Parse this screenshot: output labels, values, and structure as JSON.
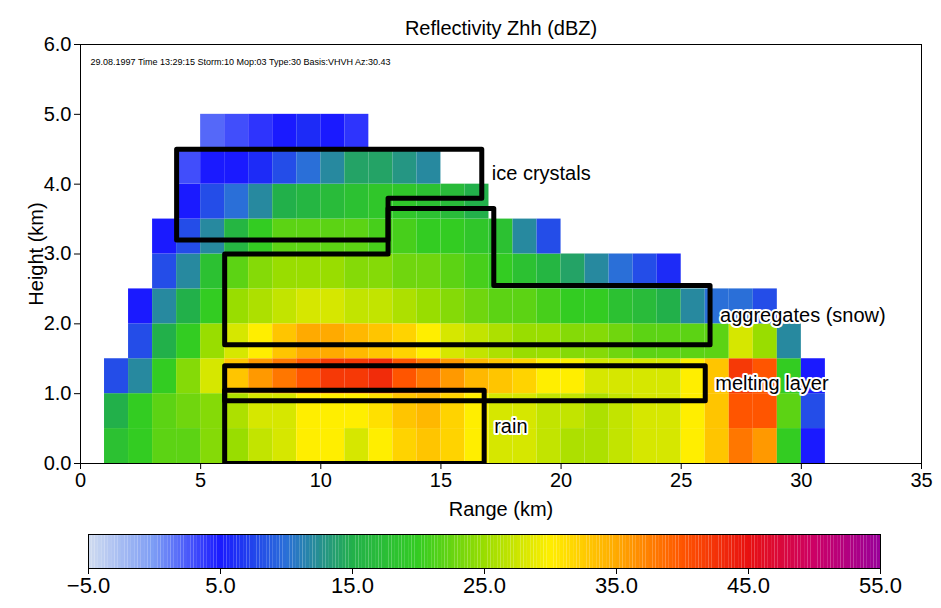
{
  "chart_data": {
    "type": "heatmap",
    "title": "Reflectivity Zhh (dBZ)",
    "subtitle": "29.08.1997 Time 13:29:15 Storm:10 Mop:03 Type:30 Basis:VHVH Az:30.43",
    "x_label": "Range (km)",
    "y_label": "Height (km)",
    "xlim": [
      0,
      35
    ],
    "ylim": [
      0,
      6
    ],
    "xticks": [
      0,
      5,
      10,
      15,
      20,
      25,
      30,
      35
    ],
    "yticks": [
      0,
      1,
      2,
      3,
      4,
      5,
      6
    ],
    "x_edges": [
      1,
      2,
      3,
      4,
      5,
      6,
      7,
      8,
      9,
      10,
      11,
      12,
      13,
      14,
      15,
      16,
      17,
      18,
      19,
      20,
      21,
      22,
      23,
      24,
      25,
      26,
      27,
      28,
      29,
      30,
      31
    ],
    "y_edges": [
      0,
      0.5,
      1,
      1.5,
      2,
      2.5,
      3,
      3.5,
      4,
      4.5,
      5
    ],
    "cells": [
      [
        18,
        20,
        22,
        22,
        24,
        25,
        27,
        28,
        30,
        30,
        28,
        30,
        32,
        33,
        32,
        30,
        28,
        28,
        27,
        26,
        26,
        27,
        28,
        28,
        30,
        33,
        38,
        36,
        20,
        5
      ],
      [
        15,
        20,
        22,
        23,
        24,
        26,
        28,
        28,
        30,
        30,
        30,
        31,
        33,
        34,
        32,
        30,
        28,
        28,
        27,
        27,
        26,
        27,
        28,
        28,
        30,
        33,
        40,
        40,
        22,
        8
      ],
      [
        8,
        12,
        20,
        24,
        28,
        33,
        36,
        38,
        40,
        42,
        42,
        43,
        40,
        38,
        36,
        34,
        33,
        32,
        30,
        30,
        28,
        28,
        28,
        28,
        30,
        33,
        42,
        40,
        20,
        5
      ],
      [
        null,
        8,
        15,
        20,
        25,
        28,
        30,
        33,
        35,
        35,
        34,
        33,
        32,
        30,
        28,
        27,
        26,
        25,
        25,
        24,
        24,
        23,
        22,
        22,
        22,
        22,
        28,
        25,
        12,
        null
      ],
      [
        null,
        5,
        12,
        15,
        20,
        25,
        26,
        27,
        28,
        28,
        27,
        27,
        26,
        25,
        24,
        23,
        22,
        22,
        21,
        20,
        20,
        18,
        17,
        15,
        12,
        10,
        10,
        8,
        null,
        null
      ],
      [
        null,
        null,
        8,
        12,
        18,
        22,
        24,
        25,
        25,
        25,
        24,
        24,
        23,
        23,
        22,
        21,
        20,
        18,
        16,
        14,
        12,
        10,
        8,
        6,
        null,
        null,
        null,
        null,
        null,
        null
      ],
      [
        null,
        null,
        5,
        8,
        12,
        16,
        20,
        22,
        22,
        22,
        22,
        21,
        21,
        20,
        20,
        19,
        18,
        12,
        8,
        null,
        null,
        null,
        null,
        null,
        null,
        null,
        null,
        null,
        null,
        null
      ],
      [
        null,
        null,
        null,
        5,
        8,
        10,
        12,
        15,
        16,
        17,
        18,
        19,
        19,
        18,
        17,
        15,
        null,
        null,
        null,
        null,
        null,
        null,
        null,
        null,
        null,
        null,
        null,
        null,
        null,
        null
      ],
      [
        null,
        null,
        null,
        3,
        5,
        5,
        6,
        8,
        10,
        12,
        14,
        14,
        13,
        12,
        null,
        null,
        null,
        null,
        null,
        null,
        null,
        null,
        null,
        null,
        null,
        null,
        null,
        null,
        null,
        null
      ],
      [
        null,
        null,
        null,
        null,
        2,
        3,
        4,
        5,
        6,
        5,
        4,
        null,
        null,
        null,
        null,
        null,
        null,
        null,
        null,
        null,
        null,
        null,
        null,
        null,
        null,
        null,
        null,
        null,
        null,
        null
      ]
    ],
    "colorbar": {
      "range": [
        -5,
        55
      ],
      "ticks": [
        {
          "value": -5,
          "label": "−5.0"
        },
        {
          "value": 5,
          "label": "5.0"
        },
        {
          "value": 15,
          "label": "15.0"
        },
        {
          "value": 25,
          "label": "25.0"
        },
        {
          "value": 35,
          "label": "35.0"
        },
        {
          "value": 45,
          "label": "45.0"
        },
        {
          "value": 55,
          "label": "55.0"
        }
      ],
      "colors": [
        "#d0dcf0",
        "#7c9cf5",
        "#1a1aff",
        "#2a6fd8",
        "#22b04a",
        "#33cc22",
        "#99dd00",
        "#ffee00",
        "#ffaa00",
        "#ff5500",
        "#e81010",
        "#cc0066",
        "#990099"
      ]
    },
    "regions": [
      {
        "label": "ice crystals",
        "points": [
          [
            4,
            3.2
          ],
          [
            4,
            4.5
          ],
          [
            16.7,
            4.5
          ],
          [
            16.7,
            3.8
          ],
          [
            12.8,
            3.8
          ],
          [
            12.8,
            3.2
          ]
        ]
      },
      {
        "label": "aggregates (snow)",
        "points": [
          [
            6,
            1.7
          ],
          [
            6,
            3.0
          ],
          [
            12.8,
            3.0
          ],
          [
            12.8,
            3.65
          ],
          [
            17.2,
            3.65
          ],
          [
            17.2,
            2.55
          ],
          [
            26.2,
            2.55
          ],
          [
            26.2,
            1.7
          ]
        ]
      },
      {
        "label": "melting layer",
        "points": [
          [
            6,
            0.9
          ],
          [
            6,
            1.4
          ],
          [
            26,
            1.4
          ],
          [
            26,
            0.9
          ]
        ]
      },
      {
        "label": "rain",
        "points": [
          [
            6,
            0
          ],
          [
            6,
            1.05
          ],
          [
            16.8,
            1.05
          ],
          [
            16.8,
            0
          ]
        ]
      }
    ]
  }
}
